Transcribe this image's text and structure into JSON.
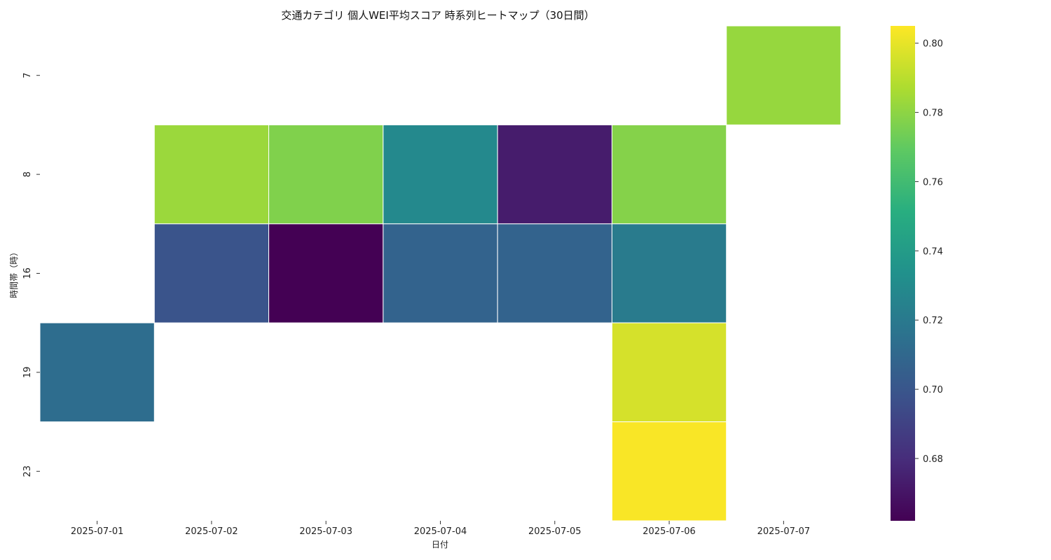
{
  "chart_data": {
    "type": "heatmap",
    "title": "交通カテゴリ 個人WEI平均スコア 時系列ヒートマップ（30日間）",
    "xlabel": "日付",
    "ylabel": "時間帯（時）",
    "x_categories": [
      "2025-07-01",
      "2025-07-02",
      "2025-07-03",
      "2025-07-04",
      "2025-07-05",
      "2025-07-06",
      "2025-07-07"
    ],
    "y_categories": [
      "7",
      "8",
      "16",
      "19",
      "23"
    ],
    "values": [
      [
        null,
        null,
        null,
        null,
        null,
        null,
        0.782
      ],
      [
        null,
        0.783,
        0.777,
        0.729,
        0.673,
        0.778,
        null
      ],
      [
        null,
        0.699,
        0.662,
        0.707,
        0.707,
        0.721,
        null
      ],
      [
        0.713,
        null,
        null,
        null,
        null,
        0.796,
        null
      ],
      [
        null,
        null,
        null,
        null,
        null,
        0.804,
        null
      ]
    ],
    "colorscale": "viridis",
    "vmin": 0.662,
    "vmax": 0.805,
    "colorbar_ticks": [
      "0.68",
      "0.70",
      "0.72",
      "0.74",
      "0.76",
      "0.78",
      "0.80"
    ],
    "grid": false,
    "colorbar_position": "right"
  }
}
